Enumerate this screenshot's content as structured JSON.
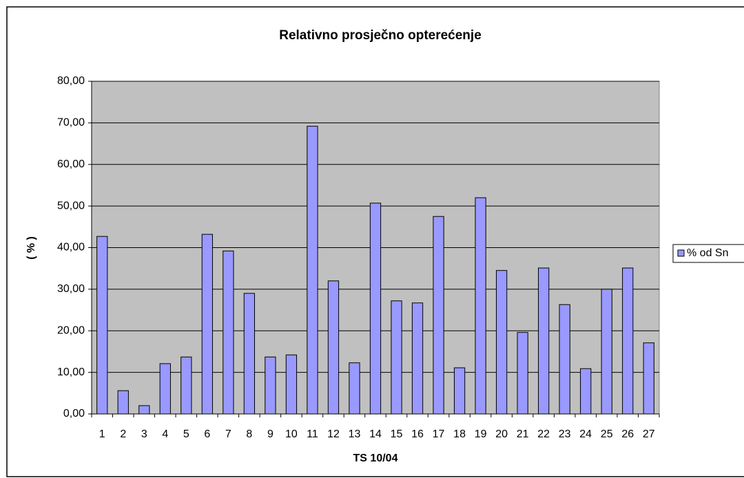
{
  "chart_data": {
    "type": "bar",
    "title": "Relativno prosječno opterećenje",
    "x_label": "TS 10/04",
    "y_label": "( % )",
    "categories": [
      "1",
      "2",
      "3",
      "4",
      "5",
      "6",
      "7",
      "8",
      "9",
      "10",
      "11",
      "12",
      "13",
      "14",
      "15",
      "16",
      "17",
      "18",
      "19",
      "20",
      "21",
      "22",
      "23",
      "24",
      "25",
      "26",
      "27"
    ],
    "series": [
      {
        "name": "% od Sn",
        "color": "#9999ff",
        "values": [
          42.7,
          5.6,
          2.0,
          12.1,
          13.7,
          43.2,
          39.2,
          29.0,
          13.7,
          14.2,
          69.2,
          32.0,
          12.3,
          50.7,
          27.2,
          26.7,
          47.5,
          11.1,
          52.0,
          34.5,
          19.6,
          35.1,
          26.3,
          10.9,
          30.0,
          35.1,
          17.1
        ]
      }
    ],
    "ylim": [
      0,
      80
    ],
    "yticks": [
      {
        "value": 0,
        "label": "0,00"
      },
      {
        "value": 10,
        "label": "10,00"
      },
      {
        "value": 20,
        "label": "20,00"
      },
      {
        "value": 30,
        "label": "30,00"
      },
      {
        "value": 40,
        "label": "40,00"
      },
      {
        "value": 50,
        "label": "50,00"
      },
      {
        "value": 60,
        "label": "60,00"
      },
      {
        "value": 70,
        "label": "70,00"
      },
      {
        "value": 80,
        "label": "80,00"
      }
    ],
    "grid": true,
    "legend": "right"
  }
}
